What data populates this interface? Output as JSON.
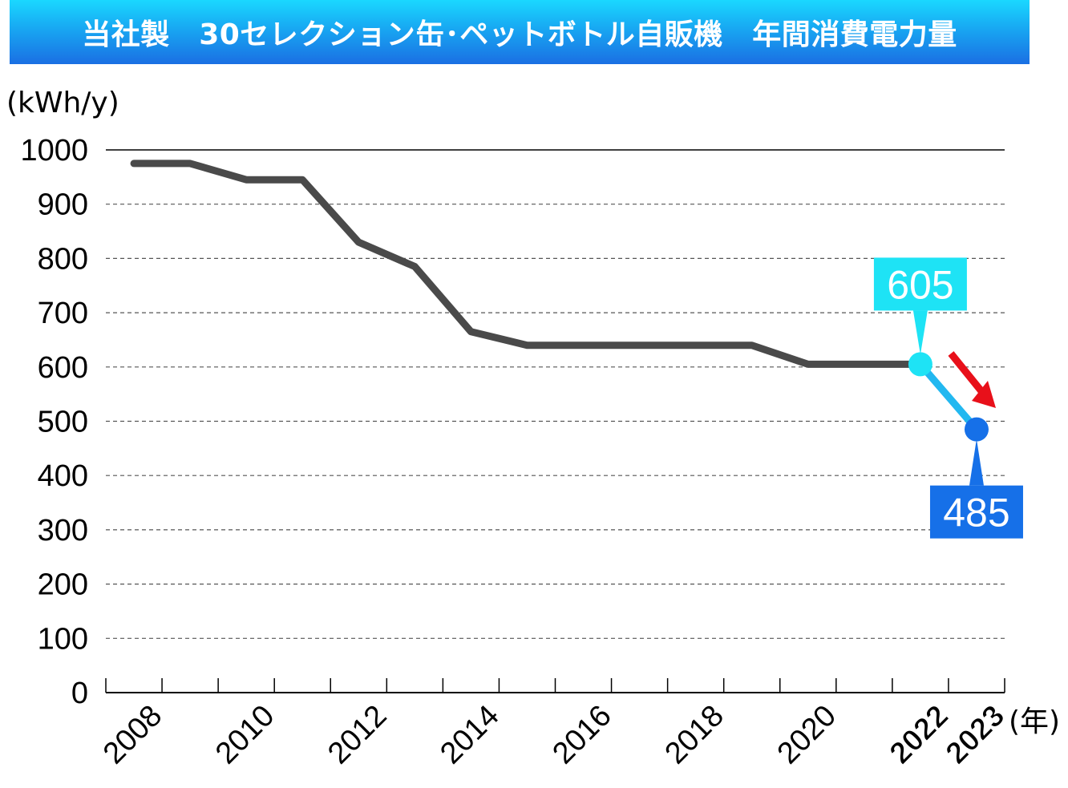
{
  "chart_data": {
    "type": "line",
    "title": "当社製　30セレクション缶･ペットボトル自販機　年間消費電力量",
    "y_unit": "(kWh/y)",
    "x_unit": "(年)",
    "ylim": [
      0,
      1000
    ],
    "y_ticks": [
      0,
      100,
      200,
      300,
      400,
      500,
      600,
      700,
      800,
      900,
      1000
    ],
    "grid": "horizontal dashed",
    "x_tick_labels": [
      {
        "year": 2008,
        "label": "2008",
        "color": "#000000"
      },
      {
        "year": 2010,
        "label": "2010",
        "color": "#000000"
      },
      {
        "year": 2012,
        "label": "2012",
        "color": "#000000"
      },
      {
        "year": 2014,
        "label": "2014",
        "color": "#000000"
      },
      {
        "year": 2016,
        "label": "2016",
        "color": "#000000"
      },
      {
        "year": 2018,
        "label": "2018",
        "color": "#000000"
      },
      {
        "year": 2020,
        "label": "2020",
        "color": "#000000"
      },
      {
        "year": 2022,
        "label": "2022",
        "color": "#1ee3f5"
      },
      {
        "year": 2023,
        "label": "2023",
        "color": "#1670e8"
      }
    ],
    "x": [
      2008,
      2009,
      2010,
      2011,
      2012,
      2013,
      2014,
      2015,
      2016,
      2017,
      2018,
      2019,
      2020,
      2021,
      2022,
      2023
    ],
    "series": [
      {
        "values": [
          975,
          975,
          945,
          945,
          830,
          785,
          665,
          640,
          640,
          640,
          640,
          640,
          605,
          605,
          605,
          485
        ],
        "color": "#4a4a4a"
      }
    ],
    "highlight": {
      "segment_from": 2022,
      "segment_to": 2023,
      "segment_color": "#22b8f0",
      "points": [
        {
          "year": 2022,
          "value": 605,
          "label": "605",
          "color": "#1ee3f5",
          "callout": "above"
        },
        {
          "year": 2023,
          "value": 485,
          "label": "485",
          "color": "#1670e8",
          "callout": "below"
        }
      ],
      "trend_arrow": "down",
      "trend_arrow_color": "#e8101a"
    }
  }
}
